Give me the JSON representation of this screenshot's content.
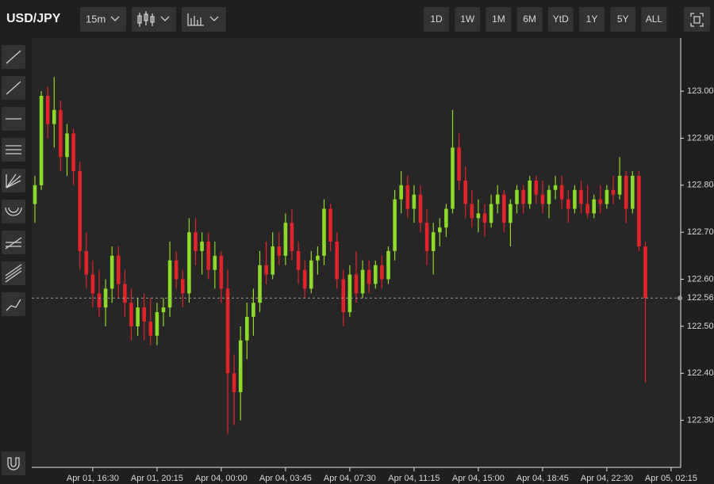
{
  "toolbar": {
    "symbol": "USD/JPY",
    "interval": "15m",
    "ranges": [
      "1D",
      "1W",
      "1M",
      "6M",
      "YtD",
      "1Y",
      "5Y",
      "ALL"
    ]
  },
  "chart_data": {
    "type": "candlestick",
    "categories": [
      null,
      null,
      null,
      null,
      null,
      null,
      null,
      null,
      null,
      "Apr 01, 16:30",
      null,
      null,
      null,
      null,
      null,
      null,
      null,
      null,
      null,
      "Apr 01, 20:15",
      null,
      null,
      null,
      null,
      null,
      null,
      null,
      null,
      null,
      "Apr 04, 00:00",
      null,
      null,
      null,
      null,
      null,
      null,
      null,
      null,
      null,
      "Apr 04, 03:45",
      null,
      null,
      null,
      null,
      null,
      null,
      null,
      null,
      null,
      "Apr 04, 07:30",
      null,
      null,
      null,
      null,
      null,
      null,
      null,
      null,
      null,
      "Apr 04, 11:15",
      null,
      null,
      null,
      null,
      null,
      null,
      null,
      null,
      null,
      "Apr 04, 15:00",
      null,
      null,
      null,
      null,
      null,
      null,
      null,
      null,
      null,
      "Apr 04, 18:45",
      null,
      null,
      null,
      null,
      null,
      null,
      null,
      null,
      null,
      "Apr 04, 22:30",
      null,
      null,
      null,
      null,
      null,
      null,
      null,
      null,
      null,
      "Apr 05, 02:15"
    ],
    "open": [
      122.76,
      122.8,
      122.99,
      122.93,
      122.96,
      122.86,
      122.91,
      122.83,
      122.66,
      122.61,
      122.57,
      122.54,
      122.58,
      122.65,
      122.59,
      122.55,
      122.5,
      122.54,
      122.51,
      122.48,
      122.53,
      122.54,
      122.64,
      122.6,
      122.57,
      122.7,
      122.66,
      122.68,
      122.62,
      122.65,
      122.58,
      122.4,
      122.36,
      122.47,
      122.52,
      122.55,
      122.63,
      122.61,
      122.67,
      122.65,
      122.72,
      122.66,
      122.62,
      122.58,
      122.64,
      122.65,
      122.75,
      122.68,
      122.6,
      122.53,
      122.61,
      122.57,
      122.62,
      122.59,
      122.63,
      122.6,
      122.66,
      122.77,
      122.8,
      122.75,
      122.78,
      122.72,
      122.66,
      122.7,
      122.71,
      122.75,
      122.88,
      122.81,
      122.76,
      122.73,
      122.74,
      122.72,
      122.76,
      122.78,
      122.72,
      122.76,
      122.79,
      122.76,
      122.81,
      122.78,
      122.76,
      122.79,
      122.8,
      122.77,
      122.75,
      122.79,
      122.76,
      122.74,
      122.77,
      122.76,
      122.79,
      122.78,
      122.82,
      122.75,
      122.82,
      122.67,
      null,
      null,
      null,
      null
    ],
    "high": [
      122.82,
      123.0,
      123.01,
      123.03,
      122.98,
      122.93,
      122.92,
      122.85,
      122.7,
      122.64,
      122.62,
      122.6,
      122.67,
      122.67,
      122.62,
      122.58,
      122.56,
      122.57,
      122.56,
      122.55,
      122.56,
      122.68,
      122.66,
      122.62,
      122.73,
      122.73,
      122.7,
      122.7,
      122.68,
      122.66,
      122.62,
      122.44,
      122.5,
      122.55,
      122.58,
      122.66,
      122.68,
      122.7,
      122.7,
      122.74,
      122.75,
      122.68,
      122.64,
      122.66,
      122.67,
      122.77,
      122.76,
      122.7,
      122.62,
      122.63,
      122.66,
      122.64,
      122.64,
      122.64,
      122.65,
      122.67,
      122.79,
      122.83,
      122.82,
      122.8,
      122.8,
      122.75,
      122.72,
      122.73,
      122.76,
      122.96,
      122.91,
      122.84,
      122.79,
      122.77,
      122.76,
      122.78,
      122.8,
      122.79,
      122.77,
      122.8,
      122.8,
      122.82,
      122.82,
      122.81,
      122.8,
      122.82,
      122.82,
      122.79,
      122.8,
      122.81,
      122.8,
      122.78,
      122.8,
      122.8,
      122.82,
      122.86,
      122.83,
      122.83,
      122.83,
      122.68,
      null,
      null,
      null,
      null
    ],
    "low": [
      122.72,
      122.79,
      122.9,
      122.88,
      122.83,
      122.82,
      122.8,
      122.62,
      122.58,
      122.54,
      122.52,
      122.5,
      122.55,
      122.56,
      122.52,
      122.47,
      122.48,
      122.47,
      122.46,
      122.46,
      122.5,
      122.52,
      122.58,
      122.54,
      122.55,
      122.63,
      122.61,
      122.6,
      122.58,
      122.55,
      122.27,
      122.29,
      122.3,
      122.43,
      122.48,
      122.53,
      122.59,
      122.6,
      122.63,
      122.63,
      122.64,
      122.59,
      122.56,
      122.57,
      122.61,
      122.63,
      122.66,
      122.58,
      122.5,
      122.52,
      122.55,
      122.56,
      122.57,
      122.58,
      122.58,
      122.59,
      122.64,
      122.74,
      122.73,
      122.72,
      122.7,
      122.63,
      122.61,
      122.67,
      122.69,
      122.74,
      122.79,
      122.73,
      122.71,
      122.7,
      122.69,
      122.71,
      122.74,
      122.7,
      122.67,
      122.74,
      122.74,
      122.75,
      122.76,
      122.74,
      122.73,
      122.77,
      122.75,
      122.72,
      122.74,
      122.74,
      122.73,
      122.73,
      122.74,
      122.75,
      122.76,
      122.77,
      122.72,
      122.74,
      122.66,
      122.38,
      null,
      null,
      null,
      null
    ],
    "close": [
      122.8,
      122.99,
      122.93,
      122.96,
      122.86,
      122.91,
      122.83,
      122.66,
      122.61,
      122.57,
      122.54,
      122.58,
      122.65,
      122.59,
      122.55,
      122.5,
      122.54,
      122.51,
      122.48,
      122.53,
      122.54,
      122.64,
      122.6,
      122.57,
      122.7,
      122.66,
      122.68,
      122.62,
      122.65,
      122.58,
      122.4,
      122.36,
      122.47,
      122.52,
      122.55,
      122.63,
      122.61,
      122.67,
      122.65,
      122.72,
      122.66,
      122.62,
      122.58,
      122.64,
      122.65,
      122.75,
      122.68,
      122.6,
      122.53,
      122.61,
      122.57,
      122.62,
      122.59,
      122.63,
      122.6,
      122.66,
      122.77,
      122.8,
      122.75,
      122.78,
      122.72,
      122.66,
      122.7,
      122.71,
      122.75,
      122.88,
      122.81,
      122.76,
      122.73,
      122.74,
      122.72,
      122.76,
      122.78,
      122.72,
      122.76,
      122.79,
      122.76,
      122.81,
      122.78,
      122.76,
      122.79,
      122.8,
      122.77,
      122.75,
      122.79,
      122.76,
      122.74,
      122.77,
      122.76,
      122.79,
      122.78,
      122.82,
      122.75,
      122.82,
      122.67,
      122.56,
      null,
      null,
      null,
      null
    ],
    "up_color": "#8fd92a",
    "down_color": "#e0242b",
    "ylim": [
      122.2,
      123.113
    ],
    "yticks": [
      {
        "value": 122.3,
        "label": "122.30"
      },
      {
        "value": 122.4,
        "label": "122.40"
      },
      {
        "value": 122.5,
        "label": "122.50"
      },
      {
        "value": 122.6,
        "label": "122.60"
      },
      {
        "value": 122.7,
        "label": "122.70"
      },
      {
        "value": 122.8,
        "label": "122.80"
      },
      {
        "value": 122.9,
        "label": "122.90"
      },
      {
        "value": 123.0,
        "label": "123.00"
      }
    ],
    "last_price": {
      "value": 122.56,
      "label": "122.56"
    }
  }
}
